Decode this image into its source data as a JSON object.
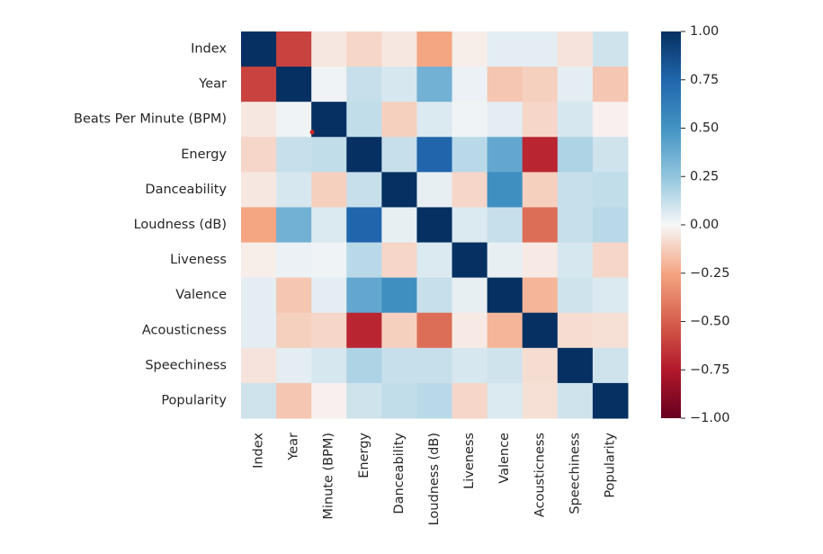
{
  "chart_data": {
    "type": "heatmap",
    "title": "",
    "xlabel": "",
    "ylabel": "",
    "row_labels": [
      "Index",
      "Year",
      "Beats Per Minute (BPM)",
      "Energy",
      "Danceability",
      "Loudness (dB)",
      "Liveness",
      "Valence",
      "Acousticness",
      "Speechiness",
      "Popularity"
    ],
    "col_labels": [
      "Index",
      "Year",
      "Minute (BPM)",
      "Energy",
      "Danceability",
      "Loudness (dB)",
      "Liveness",
      "Valence",
      "Acousticness",
      "Speechiness",
      "Popularity"
    ],
    "values": [
      [
        1.0,
        -0.6,
        -0.05,
        -0.1,
        -0.05,
        -0.25,
        -0.03,
        0.05,
        0.05,
        -0.06,
        0.1
      ],
      [
        -0.6,
        1.0,
        0.02,
        0.12,
        0.08,
        0.35,
        0.03,
        -0.15,
        -0.12,
        0.05,
        -0.15
      ],
      [
        -0.05,
        0.02,
        1.0,
        0.13,
        -0.12,
        0.07,
        0.02,
        0.05,
        -0.1,
        0.08,
        -0.02
      ],
      [
        -0.1,
        0.12,
        0.13,
        1.0,
        0.12,
        0.75,
        0.15,
        0.4,
        -0.7,
        0.18,
        0.1
      ],
      [
        -0.05,
        0.08,
        -0.12,
        0.12,
        1.0,
        0.04,
        -0.1,
        0.52,
        -0.12,
        0.12,
        0.13
      ],
      [
        -0.25,
        0.35,
        0.07,
        0.75,
        0.04,
        1.0,
        0.07,
        0.12,
        -0.45,
        0.12,
        0.15
      ],
      [
        -0.03,
        0.03,
        0.02,
        0.15,
        -0.1,
        0.07,
        1.0,
        0.04,
        -0.04,
        0.08,
        -0.1
      ],
      [
        0.05,
        -0.15,
        0.05,
        0.4,
        0.52,
        0.12,
        0.04,
        1.0,
        -0.2,
        0.1,
        0.07
      ],
      [
        0.05,
        -0.12,
        -0.1,
        -0.7,
        -0.12,
        -0.45,
        -0.04,
        -0.2,
        1.0,
        -0.08,
        -0.07
      ],
      [
        -0.06,
        0.05,
        0.08,
        0.18,
        0.12,
        0.12,
        0.08,
        0.1,
        -0.08,
        1.0,
        0.1
      ],
      [
        0.1,
        -0.15,
        -0.02,
        0.1,
        0.13,
        0.15,
        -0.1,
        0.07,
        -0.07,
        0.1,
        1.0
      ]
    ],
    "colorbar": {
      "min": -1.0,
      "max": 1.0,
      "ticks": [
        "1.00",
        "0.75",
        "0.50",
        "0.25",
        "0.00",
        "−0.25",
        "−0.50",
        "−0.75",
        "−1.00"
      ],
      "colormap": "RdBu"
    }
  }
}
